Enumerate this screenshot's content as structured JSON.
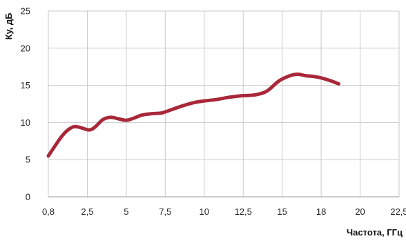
{
  "chart_data": {
    "type": "line",
    "title": "",
    "xlabel": "Частота, ГГц",
    "ylabel": "Ку, дБ",
    "x_ticks": [
      0.8,
      2.5,
      5,
      7.5,
      10,
      12.5,
      15,
      18,
      20,
      22.5
    ],
    "x_tick_labels": [
      "0,8",
      "2,5",
      "5",
      "7,5",
      "10",
      "12,5",
      "15",
      "18",
      "20",
      "22,5"
    ],
    "y_ticks": [
      0,
      5,
      10,
      15,
      20,
      25
    ],
    "y_tick_labels": [
      "0",
      "5",
      "10",
      "15",
      "20",
      "25"
    ],
    "xlim": [
      0.8,
      22.5
    ],
    "ylim": [
      0,
      25
    ],
    "grid": true,
    "series": [
      {
        "color": "#a8283a",
        "points": [
          [
            0.8,
            5.5
          ],
          [
            1.4,
            8.2
          ],
          [
            1.8,
            9.3
          ],
          [
            2.1,
            9.4
          ],
          [
            2.6,
            9.0
          ],
          [
            3.0,
            9.4
          ],
          [
            3.5,
            10.4
          ],
          [
            4.0,
            10.7
          ],
          [
            4.5,
            10.5
          ],
          [
            5.0,
            10.3
          ],
          [
            5.5,
            10.6
          ],
          [
            6.0,
            11.0
          ],
          [
            6.7,
            11.2
          ],
          [
            7.3,
            11.3
          ],
          [
            8.0,
            11.8
          ],
          [
            8.7,
            12.3
          ],
          [
            9.4,
            12.7
          ],
          [
            10.0,
            12.9
          ],
          [
            10.8,
            13.1
          ],
          [
            11.6,
            13.4
          ],
          [
            12.4,
            13.6
          ],
          [
            13.2,
            13.7
          ],
          [
            14.0,
            14.2
          ],
          [
            14.8,
            15.6
          ],
          [
            15.6,
            16.3
          ],
          [
            16.2,
            16.5
          ],
          [
            16.8,
            16.3
          ],
          [
            17.4,
            16.2
          ],
          [
            18.0,
            16.0
          ],
          [
            18.5,
            15.6
          ],
          [
            18.9,
            15.2
          ]
        ]
      }
    ]
  }
}
